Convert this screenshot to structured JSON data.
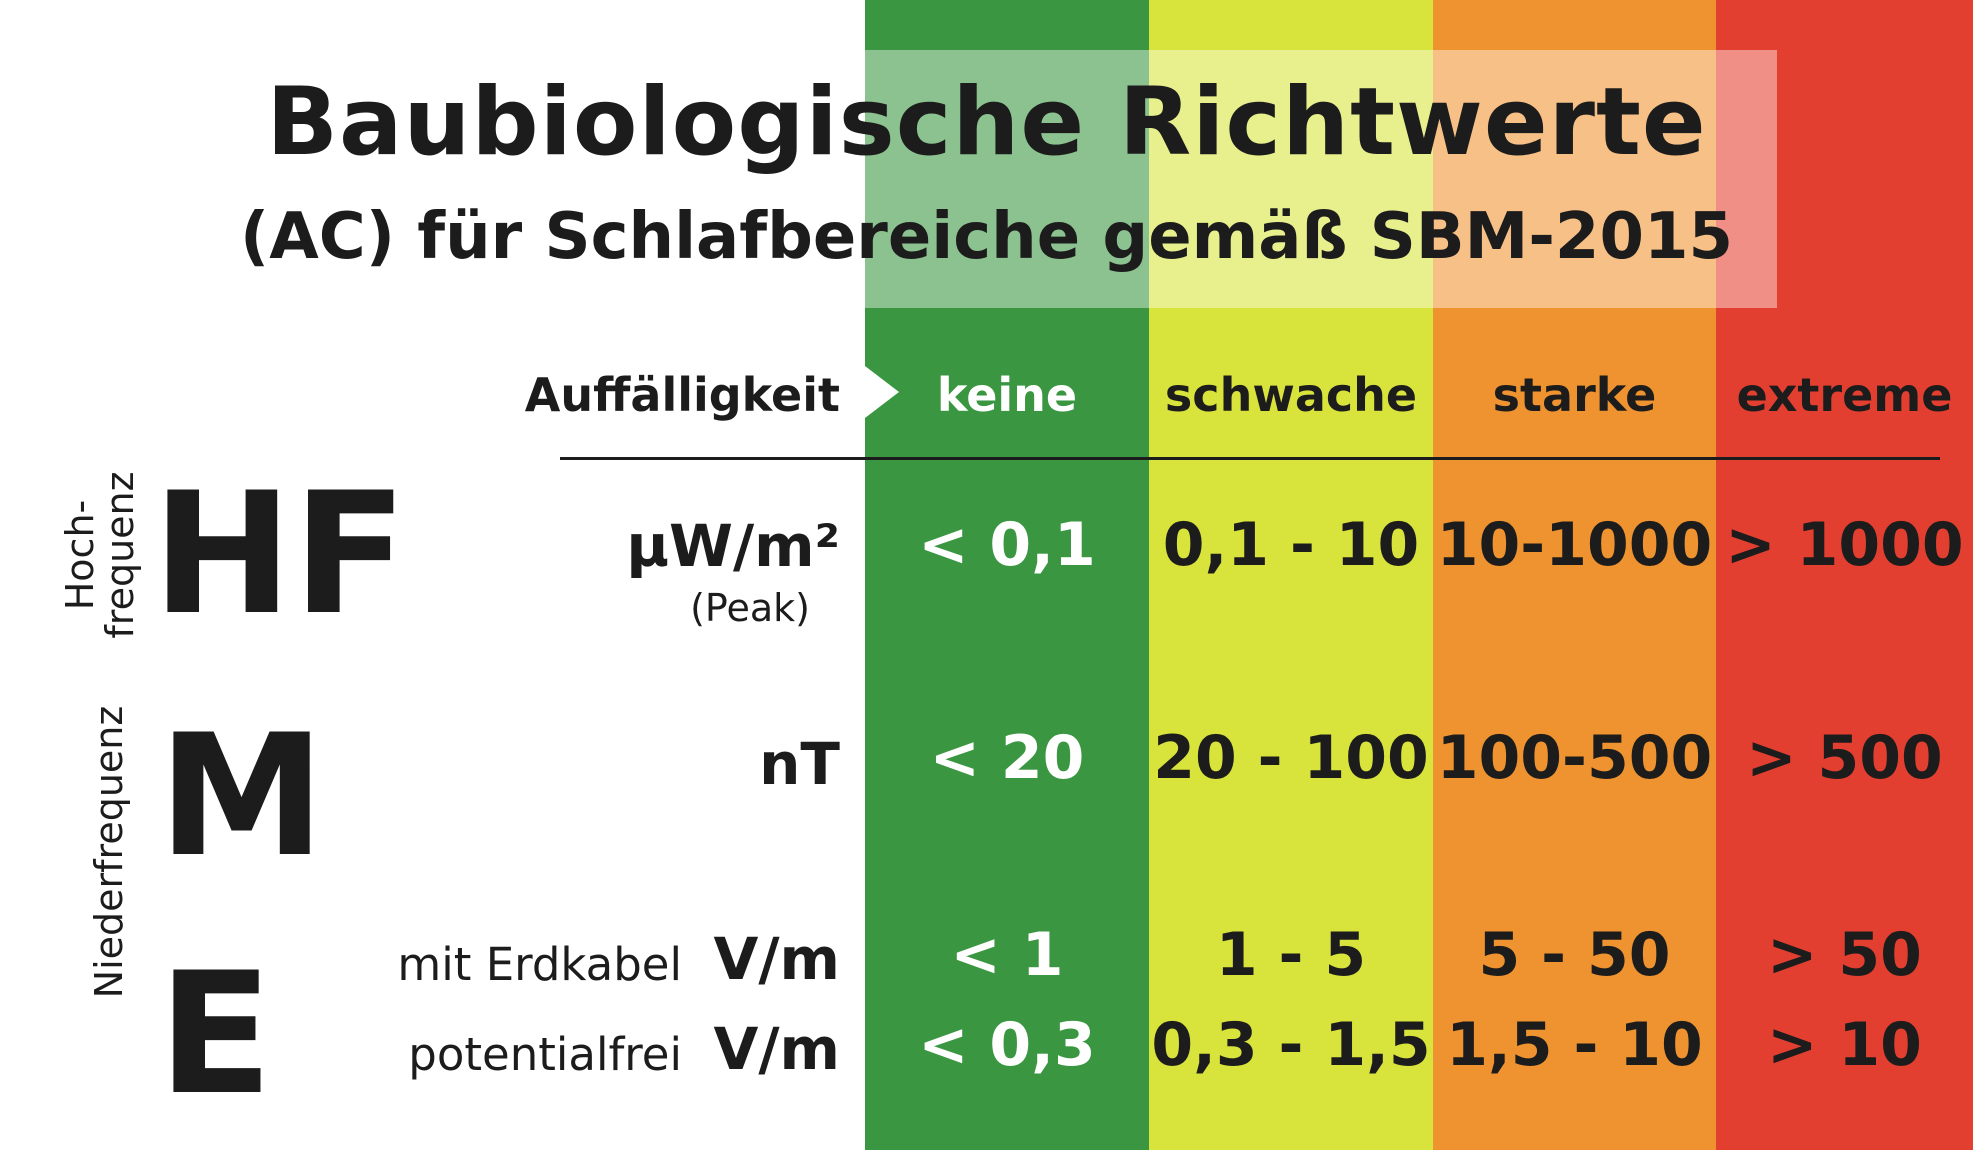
{
  "title": "Baubiologische Richtwerte",
  "subtitle": "(AC) für Schlafbereiche gemäß SBM-2015",
  "header": {
    "label": "Auffälligkeit",
    "columns": [
      "keine",
      "schwache",
      "starke",
      "extreme"
    ]
  },
  "side_labels": {
    "hf": "Hoch-\nfrequenz",
    "nf": "Niederfrequenz"
  },
  "rows": {
    "hf": {
      "symbol": "HF",
      "unit": "µW/m²",
      "unit_note": "(Peak)",
      "values": [
        "< 0,1",
        "0,1 - 10",
        "10-1000",
        "> 1000"
      ]
    },
    "m": {
      "symbol": "M",
      "unit": "nT",
      "values": [
        "< 20",
        "20 - 100",
        "100-500",
        "> 500"
      ]
    },
    "e": {
      "symbol": "E",
      "sub1": {
        "label": "mit Erdkabel",
        "unit": "V/m",
        "values": [
          "< 1",
          "1 - 5",
          "5 - 50",
          "> 50"
        ]
      },
      "sub2": {
        "label": "potentialfrei",
        "unit": "V/m",
        "values": [
          "< 0,3",
          "0,3 - 1,5",
          "1,5 - 10",
          "> 10"
        ]
      }
    }
  },
  "colors": {
    "keine": "#3a9640",
    "schwache": "#d8e33c",
    "starke": "#ef9330",
    "extreme": "#e33f30"
  }
}
